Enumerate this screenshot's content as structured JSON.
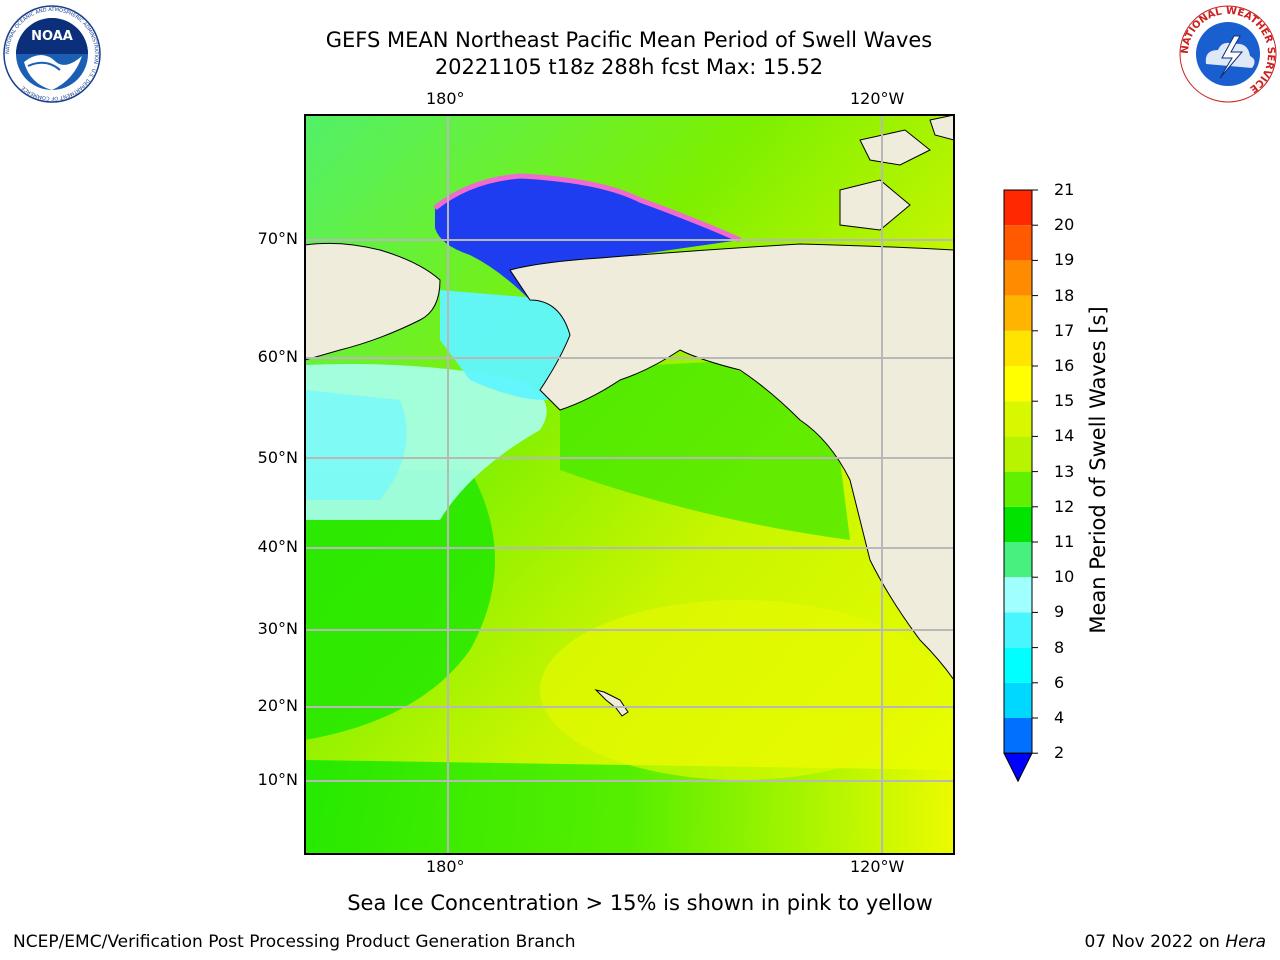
{
  "header": {
    "title_line1": "GEFS MEAN Northeast Pacific Mean Period of Swell Waves",
    "title_line2": "20221105 t18z 288h fcst   Max: 15.52"
  },
  "logos": {
    "noaa_text": "NOAA",
    "noaa_ring_text": "NATIONAL OCEANIC AND ATMOSPHERIC ADMINISTRATION · U.S. DEPARTMENT OF COMMERCE",
    "nws_ring_text": "NATIONAL WEATHER SERVICE"
  },
  "map": {
    "lon_labels_top": [
      "180°",
      "120°W"
    ],
    "lon_labels_bottom": [
      "180°",
      "120°W"
    ],
    "lat_labels": [
      "70°N",
      "60°N",
      "50°N",
      "40°N",
      "30°N",
      "20°N",
      "10°N"
    ],
    "colors": {
      "land": "#efecdc",
      "ocean_low": "#1e3cf0",
      "ice_pink": "#f06ad0"
    }
  },
  "colorbar": {
    "label": "Mean Period of Swell Waves [s]",
    "ticks": [
      "2",
      "4",
      "6",
      "8",
      "9",
      "10",
      "11",
      "12",
      "13",
      "14",
      "15",
      "16",
      "17",
      "18",
      "19",
      "20",
      "21"
    ],
    "colors": [
      "#0070ff",
      "#00d8ff",
      "#00ffff",
      "#48f6ff",
      "#a0ffff",
      "#48f080",
      "#00e400",
      "#60f000",
      "#b8f400",
      "#d8f800",
      "#ffff00",
      "#ffe400",
      "#ffb400",
      "#ff8c00",
      "#ff5a00",
      "#ff2800"
    ],
    "extend_color": "#0000ff"
  },
  "footer": {
    "note": "Sea Ice Concentration > 15% is shown in pink to yellow",
    "left": "NCEP/EMC/Verification Post Processing Product Generation Branch",
    "right_date": "07 Nov 2022 on ",
    "right_host": "Hera"
  }
}
